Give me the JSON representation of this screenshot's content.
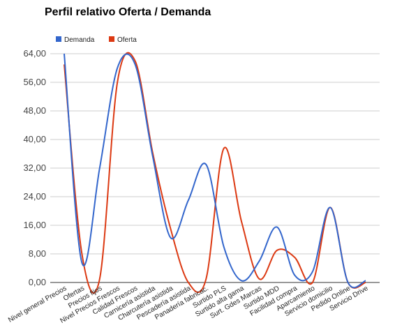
{
  "colors": {
    "demanda": "#3366cc",
    "oferta": "#dc3912",
    "grid": "#cccccc",
    "axis": "#333333"
  },
  "chart_data": {
    "type": "line",
    "title": "Perfil relativo Oferta / Demanda",
    "xlabel": "",
    "ylabel": "",
    "ylim": [
      0,
      64
    ],
    "yticks": [
      "0,00",
      "8,00",
      "16,00",
      "24,00",
      "32,00",
      "40,00",
      "48,00",
      "56,00",
      "64,00"
    ],
    "grid": true,
    "legend_position": "top-left",
    "smooth": true,
    "categories": [
      "Nivel general Precios",
      "Ofertas",
      "Precios fijos",
      "Nivel Precios Frescos",
      "Calidad Frescos",
      "Carnicería asistida",
      "Charcutería asistida",
      "Pescadería asistida",
      "Panadería fabricac.",
      "Surtido PLS",
      "Surtido alta gama",
      "Surt. Gdes Marcas",
      "Surtido MDD",
      "Facilidad compra",
      "Aparcamiento",
      "Servicio domicilio",
      "Pedido Online",
      "Servicio Drive"
    ],
    "series": [
      {
        "name": "Demanda",
        "color": "#3366cc",
        "values": [
          64,
          5.5,
          32,
          60,
          61,
          35,
          12.5,
          23,
          33,
          10,
          0.5,
          6,
          15.5,
          2,
          3,
          21,
          0,
          0.5
        ]
      },
      {
        "name": "Oferta",
        "color": "#dc3912",
        "values": [
          61,
          8,
          1,
          56,
          62,
          36,
          15,
          0,
          1,
          37.5,
          17,
          1,
          9,
          7,
          0,
          21,
          0,
          0
        ]
      }
    ]
  }
}
